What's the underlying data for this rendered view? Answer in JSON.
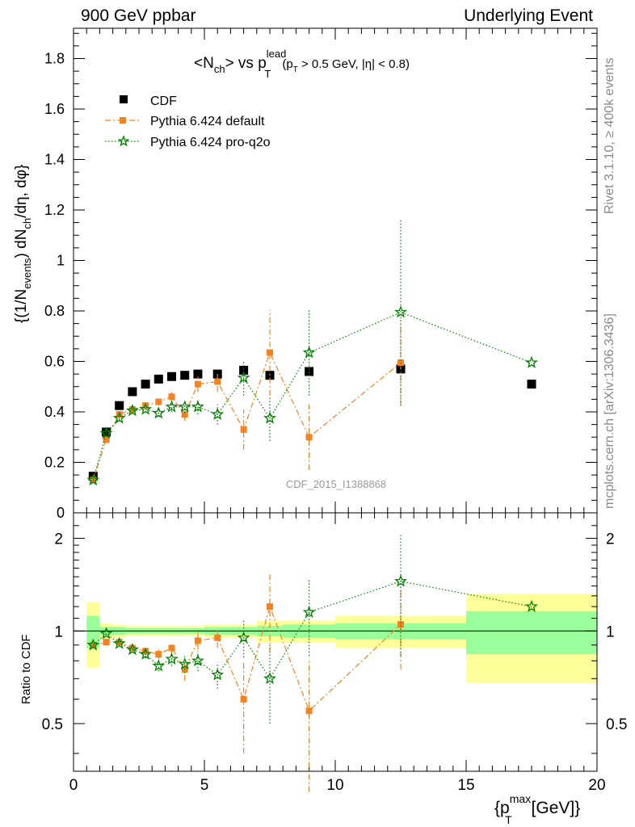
{
  "header": {
    "left": "900 GeV ppbar",
    "right": "Underlying Event"
  },
  "side_labels": {
    "top": "Rivet 3.1.10, ≥ 400k events",
    "bottom": "mcplots.cern.ch [arXiv:1306.3436]"
  },
  "watermark": "CDF_2015_I1388868",
  "colors": {
    "cdf": "#000000",
    "default": "#f58220",
    "proq2o": "#008000",
    "band_outer": "#ffff99",
    "band_inner": "#99ff99"
  },
  "chart_data": [
    {
      "type": "scatter",
      "title": "<N_ch> vs p_T^lead (p_T > 0.5 GeV, |η| < 0.8)",
      "title_parts": {
        "main": "<N",
        "main_sub": "ch",
        "mid": "> vs p",
        "p_sup": "lead",
        "p_sub": "T",
        "cut_a": "(p",
        "cut_sub": "T",
        "cut_b": " > 0.5 GeV, |η| < 0.8)"
      },
      "ylabel": "{(1/N_events) dN_ch/dη, dφ}",
      "ylabel_parts": {
        "a": "{(1/N",
        "a_sub": "events",
        "b": ") dN",
        "b_sub": "ch",
        "c": "/dη, dφ}"
      },
      "ylim": [
        0,
        1.92
      ],
      "xlim": [
        0,
        20
      ],
      "yticks": [
        0,
        0.2,
        0.4,
        0.6,
        0.8,
        1,
        1.2,
        1.4,
        1.6,
        1.8
      ],
      "ytick_labels": [
        "0",
        "0.2",
        "0.4",
        "0.6",
        "0.8",
        "1",
        "1.2",
        "1.4",
        "1.6",
        "1.8"
      ],
      "legend_position": "top-left",
      "series": [
        {
          "name": "CDF",
          "key": "cdf",
          "marker": "square",
          "x": [
            0.75,
            1.25,
            1.75,
            2.25,
            2.75,
            3.25,
            3.75,
            4.25,
            4.75,
            5.5,
            6.5,
            7.5,
            9.0,
            12.5,
            17.5
          ],
          "y": [
            0.145,
            0.32,
            0.425,
            0.48,
            0.51,
            0.53,
            0.54,
            0.545,
            0.55,
            0.55,
            0.565,
            0.545,
            0.56,
            0.57,
            0.51
          ]
        },
        {
          "name": "Pythia 6.424 default",
          "key": "default",
          "marker": "square-small",
          "line": "dashdot",
          "x": [
            0.75,
            1.25,
            1.75,
            2.25,
            2.75,
            3.25,
            3.75,
            4.25,
            4.75,
            5.5,
            6.5,
            7.5,
            9.0,
            12.5
          ],
          "y": [
            0.13,
            0.29,
            0.39,
            0.41,
            0.425,
            0.44,
            0.46,
            0.39,
            0.51,
            0.52,
            0.33,
            0.635,
            0.3,
            0.595
          ],
          "err": [
            0.005,
            0.005,
            0.008,
            0.01,
            0.012,
            0.015,
            0.02,
            0.025,
            0.03,
            0.04,
            0.08,
            0.17,
            0.13,
            0.17
          ]
        },
        {
          "name": "Pythia 6.424 pro-q2o",
          "key": "proq2o",
          "marker": "star",
          "line": "dotted",
          "x": [
            0.75,
            1.25,
            1.75,
            2.25,
            2.75,
            3.25,
            3.75,
            4.25,
            4.75,
            5.5,
            6.5,
            7.5,
            9.0,
            12.5,
            17.5
          ],
          "y": [
            0.13,
            0.315,
            0.375,
            0.405,
            0.41,
            0.395,
            0.42,
            0.42,
            0.42,
            0.39,
            0.535,
            0.375,
            0.635,
            0.795,
            0.595
          ],
          "err": [
            0.005,
            0.005,
            0.008,
            0.01,
            0.012,
            0.015,
            0.02,
            0.025,
            0.03,
            0.04,
            0.07,
            0.09,
            0.17,
            0.37,
            0
          ]
        }
      ]
    },
    {
      "type": "scatter",
      "ylabel": "Ratio to CDF",
      "xlabel": "{p_T^max [GeV]}",
      "xlabel_parts": {
        "a": "{p",
        "sub": "T",
        "sup": "max",
        "b": " [GeV]}"
      },
      "xlim": [
        0,
        20
      ],
      "ylim": [
        0.35,
        2.42
      ],
      "log_y": true,
      "xticks": [
        0,
        5,
        10,
        15,
        20
      ],
      "xtick_labels": [
        "0",
        "5",
        "10",
        "15",
        "20"
      ],
      "yticks": [
        0.5,
        1,
        2
      ],
      "ytick_labels": [
        "0.5",
        "1",
        "2"
      ],
      "bands": [
        {
          "x0": 0.5,
          "x1": 1.0,
          "inner": 0.12,
          "outer": 0.24
        },
        {
          "x0": 1.0,
          "x1": 1.5,
          "inner": 0.03,
          "outer": 0.06
        },
        {
          "x0": 1.5,
          "x1": 2.0,
          "inner": 0.03,
          "outer": 0.05
        },
        {
          "x0": 2.0,
          "x1": 5.0,
          "inner": 0.02,
          "outer": 0.04
        },
        {
          "x0": 5.0,
          "x1": 6.0,
          "inner": 0.03,
          "outer": 0.05
        },
        {
          "x0": 6.0,
          "x1": 7.0,
          "inner": 0.03,
          "outer": 0.05
        },
        {
          "x0": 7.0,
          "x1": 8.0,
          "inner": 0.04,
          "outer": 0.08
        },
        {
          "x0": 8.0,
          "x1": 10.0,
          "inner": 0.05,
          "outer": 0.08
        },
        {
          "x0": 10.0,
          "x1": 15.0,
          "inner": 0.06,
          "outer": 0.12
        },
        {
          "x0": 15.0,
          "x1": 20.0,
          "inner": 0.16,
          "outer": 0.32
        }
      ],
      "series": [
        {
          "name": "Pythia 6.424 default",
          "key": "default",
          "marker": "square-small",
          "line": "dashdot",
          "x": [
            0.75,
            1.25,
            1.75,
            2.25,
            2.75,
            3.25,
            3.75,
            4.25,
            4.75,
            5.5,
            6.5,
            7.5,
            9.0,
            12.5
          ],
          "y": [
            0.9,
            0.92,
            0.92,
            0.88,
            0.86,
            0.84,
            0.88,
            0.75,
            0.93,
            0.95,
            0.6,
            1.2,
            0.55,
            1.05
          ],
          "err": [
            0.01,
            0.01,
            0.015,
            0.02,
            0.025,
            0.03,
            0.04,
            0.06,
            0.06,
            0.07,
            0.2,
            0.35,
            0.25,
            0.3
          ]
        },
        {
          "name": "Pythia 6.424 pro-q2o",
          "key": "proq2o",
          "marker": "star",
          "line": "dotted",
          "x": [
            0.75,
            1.25,
            1.75,
            2.25,
            2.75,
            3.25,
            3.75,
            4.25,
            4.75,
            5.5,
            6.5,
            7.5,
            9.0,
            12.5,
            17.5
          ],
          "y": [
            0.9,
            0.98,
            0.91,
            0.87,
            0.84,
            0.77,
            0.81,
            0.78,
            0.8,
            0.72,
            0.95,
            0.7,
            1.15,
            1.45,
            1.2
          ],
          "err": [
            0.01,
            0.01,
            0.015,
            0.02,
            0.025,
            0.03,
            0.04,
            0.05,
            0.06,
            0.07,
            0.13,
            0.2,
            0.32,
            0.62,
            0
          ]
        }
      ]
    }
  ]
}
